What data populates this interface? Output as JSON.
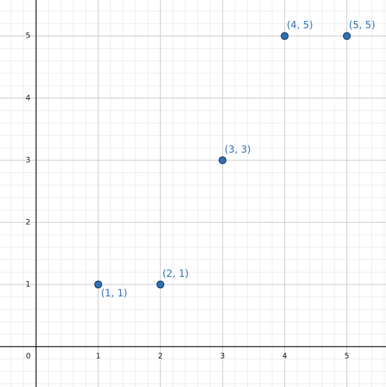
{
  "chart_data": {
    "type": "scatter",
    "x": [
      1,
      2,
      3,
      4,
      5
    ],
    "values": [
      1,
      1,
      3,
      5,
      5
    ],
    "value_labels": [
      "(1, 1)",
      "(2, 1)",
      "(3, 3)",
      "(4, 5)",
      "(5, 5)"
    ],
    "color": "#2d70b3",
    "xlim": [
      -0.58,
      5.63
    ],
    "ylim": [
      -0.65,
      5.58
    ],
    "xticks": [
      0,
      1,
      2,
      3,
      4,
      5
    ],
    "yticks": [
      1,
      2,
      3,
      4,
      5
    ],
    "grid": true
  }
}
